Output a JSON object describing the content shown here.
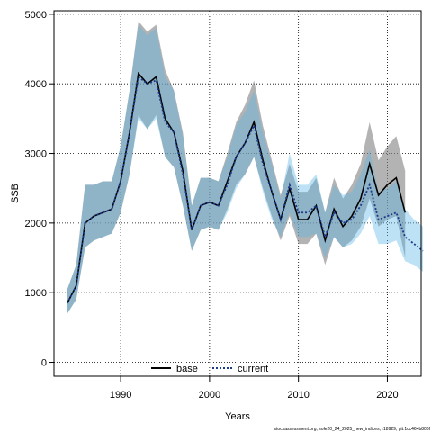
{
  "chart_data": {
    "type": "line",
    "title": "",
    "xlabel": "Years",
    "ylabel": "SSB",
    "xlim": [
      1982.5,
      2023.8
    ],
    "ylim": [
      -200,
      5050
    ],
    "x_ticks": [
      1990,
      2000,
      2010,
      2020
    ],
    "x_tick_labels": [
      "1990",
      "2000",
      "2010",
      "2020"
    ],
    "y_ticks": [
      0,
      1000,
      2000,
      3000,
      4000,
      5000
    ],
    "y_tick_labels": [
      "0",
      "1000",
      "2000",
      "3000",
      "4000",
      "5000"
    ],
    "grid": true,
    "legend_position": "bottom",
    "series": [
      {
        "name": "base",
        "color": "#000000",
        "band_color": "#808080",
        "line_style": "solid",
        "x": [
          1984,
          1985,
          1986,
          1987,
          1988,
          1989,
          1990,
          1991,
          1992,
          1993,
          1994,
          1995,
          1996,
          1997,
          1998,
          1999,
          2000,
          2001,
          2002,
          2003,
          2004,
          2005,
          2006,
          2007,
          2008,
          2009,
          2010,
          2011,
          2012,
          2013,
          2014,
          2015,
          2016,
          2017,
          2018,
          2019,
          2020,
          2021,
          2022
        ],
        "values": [
          850,
          1100,
          2000,
          2100,
          2150,
          2200,
          2600,
          3300,
          4150,
          4000,
          4100,
          3500,
          3300,
          2750,
          1900,
          2250,
          2300,
          2250,
          2600,
          2950,
          3150,
          3450,
          2900,
          2450,
          2050,
          2500,
          2050,
          2050,
          2250,
          1750,
          2200,
          1950,
          2100,
          2350,
          2850,
          2400,
          2550,
          2650,
          2150
        ],
        "lower": [
          700,
          900,
          1650,
          1750,
          1800,
          1850,
          2150,
          2700,
          3550,
          3350,
          3550,
          2950,
          2800,
          2250,
          1600,
          1900,
          1950,
          1900,
          2200,
          2550,
          2700,
          2950,
          2500,
          2100,
          1750,
          2100,
          1700,
          1700,
          1850,
          1400,
          1800,
          1650,
          1750,
          1950,
          2350,
          1950,
          2050,
          2100,
          1500
        ],
        "upper": [
          1050,
          1400,
          2550,
          2550,
          2600,
          2600,
          3100,
          3900,
          4900,
          4750,
          4850,
          4200,
          3900,
          3300,
          2250,
          2650,
          2650,
          2600,
          3000,
          3450,
          3700,
          4050,
          3400,
          2900,
          2400,
          2850,
          2450,
          2450,
          2650,
          2150,
          2650,
          2350,
          2550,
          2850,
          3450,
          2900,
          3100,
          3250,
          2750
        ]
      },
      {
        "name": "current",
        "color": "#1a3a8a",
        "band_color": "#5ab4e5",
        "line_style": "dotted",
        "x": [
          1984,
          1985,
          1986,
          1987,
          1988,
          1989,
          1990,
          1991,
          1992,
          1993,
          1994,
          1995,
          1996,
          1997,
          1998,
          1999,
          2000,
          2001,
          2002,
          2003,
          2004,
          2005,
          2006,
          2007,
          2008,
          2009,
          2010,
          2011,
          2012,
          2013,
          2014,
          2015,
          2016,
          2017,
          2018,
          2019,
          2020,
          2021,
          2022,
          2023,
          2024
        ],
        "values": [
          850,
          1100,
          2000,
          2100,
          2150,
          2200,
          2600,
          3300,
          4100,
          4000,
          4050,
          3450,
          3300,
          2700,
          1900,
          2250,
          2300,
          2250,
          2550,
          2950,
          3150,
          3400,
          2850,
          2450,
          2050,
          2550,
          2150,
          2150,
          2250,
          1800,
          2150,
          2000,
          2050,
          2250,
          2550,
          2050,
          2100,
          2150,
          1800,
          1700,
          1600
        ],
        "lower": [
          700,
          900,
          1650,
          1750,
          1800,
          1850,
          2150,
          2700,
          3500,
          3350,
          3500,
          2950,
          2800,
          2250,
          1600,
          1900,
          1950,
          1900,
          2150,
          2500,
          2700,
          2950,
          2450,
          2050,
          1800,
          2150,
          1800,
          1800,
          1850,
          1500,
          1800,
          1650,
          1700,
          1850,
          2100,
          1700,
          1700,
          1750,
          1450,
          1400,
          1300
        ],
        "upper": [
          1050,
          1400,
          2550,
          2550,
          2600,
          2600,
          3100,
          3900,
          4850,
          4700,
          4800,
          4100,
          3900,
          3250,
          2250,
          2650,
          2650,
          2600,
          2950,
          3400,
          3600,
          3900,
          3300,
          2850,
          2350,
          3000,
          2550,
          2550,
          2700,
          2150,
          2550,
          2400,
          2450,
          2700,
          3050,
          2450,
          2500,
          2600,
          2200,
          2050,
          1950
        ]
      }
    ]
  },
  "legend": {
    "items": [
      {
        "label": "base",
        "color": "#000000",
        "style": "solid"
      },
      {
        "label": "current",
        "color": "#1a3a8a",
        "style": "dotted"
      }
    ]
  },
  "footer": {
    "text": "stockassessment.org, sole20_24_2025_new_indices, r18929, git:1cc464b806f"
  }
}
